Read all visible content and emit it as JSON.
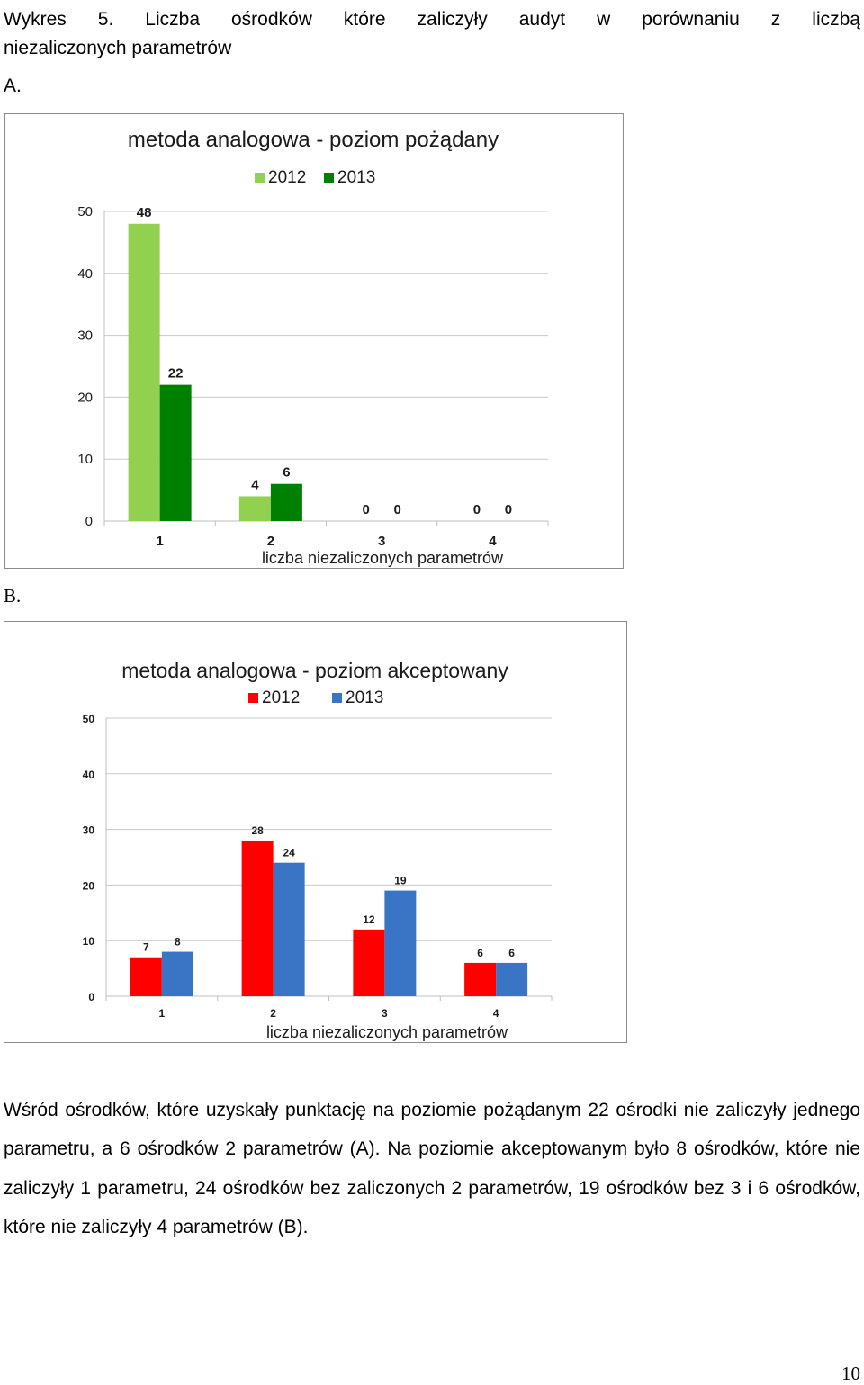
{
  "heading": {
    "line1": "Wykres 5. Liczba ośrodków które zaliczyły audyt w porównaniu z liczbą",
    "line2": "niezaliczonych parametrów"
  },
  "sections": {
    "a_label": "A.",
    "b_label": "B."
  },
  "chart_data": [
    {
      "type": "bar",
      "title": "metoda analogowa - poziom pożądany",
      "xlabel": "liczba niezaliczonych parametrów",
      "ylabel": "",
      "categories": [
        "1",
        "2",
        "3",
        "4"
      ],
      "series": [
        {
          "name": "2012",
          "values": [
            48,
            4,
            0,
            0
          ],
          "color": "#92d050"
        },
        {
          "name": "2013",
          "values": [
            22,
            6,
            0,
            0
          ],
          "color": "#008000"
        }
      ],
      "ylim": [
        0,
        50
      ],
      "yticks": [
        0,
        10,
        20,
        30,
        40,
        50
      ],
      "grid": true,
      "legend": "top"
    },
    {
      "type": "bar",
      "title": "metoda analogowa - poziom akceptowany",
      "xlabel": "liczba niezaliczonych parametrów",
      "ylabel": "",
      "categories": [
        "1",
        "2",
        "3",
        "4"
      ],
      "series": [
        {
          "name": "2012",
          "values": [
            7,
            28,
            12,
            6
          ],
          "color": "#ff0000"
        },
        {
          "name": "2013",
          "values": [
            8,
            24,
            19,
            6
          ],
          "color": "#3a74c4"
        }
      ],
      "ylim": [
        0,
        50
      ],
      "yticks": [
        0,
        10,
        20,
        30,
        40,
        50
      ],
      "grid": true,
      "legend": "top"
    }
  ],
  "paragraph": "Wśród ośrodków, które uzyskały punktację na poziomie pożądanym 22 ośrodki nie zaliczyły jednego parametru, a 6 ośrodków 2 parametrów (A). Na poziomie akceptowanym było 8 ośrodków, które nie zaliczyły 1 parametru, 24 ośrodków bez zaliczonych 2 parametrów, 19 ośrodków bez 3 i 6 ośrodków, które nie zaliczyły 4 parametrów (B).",
  "page_number": "10"
}
